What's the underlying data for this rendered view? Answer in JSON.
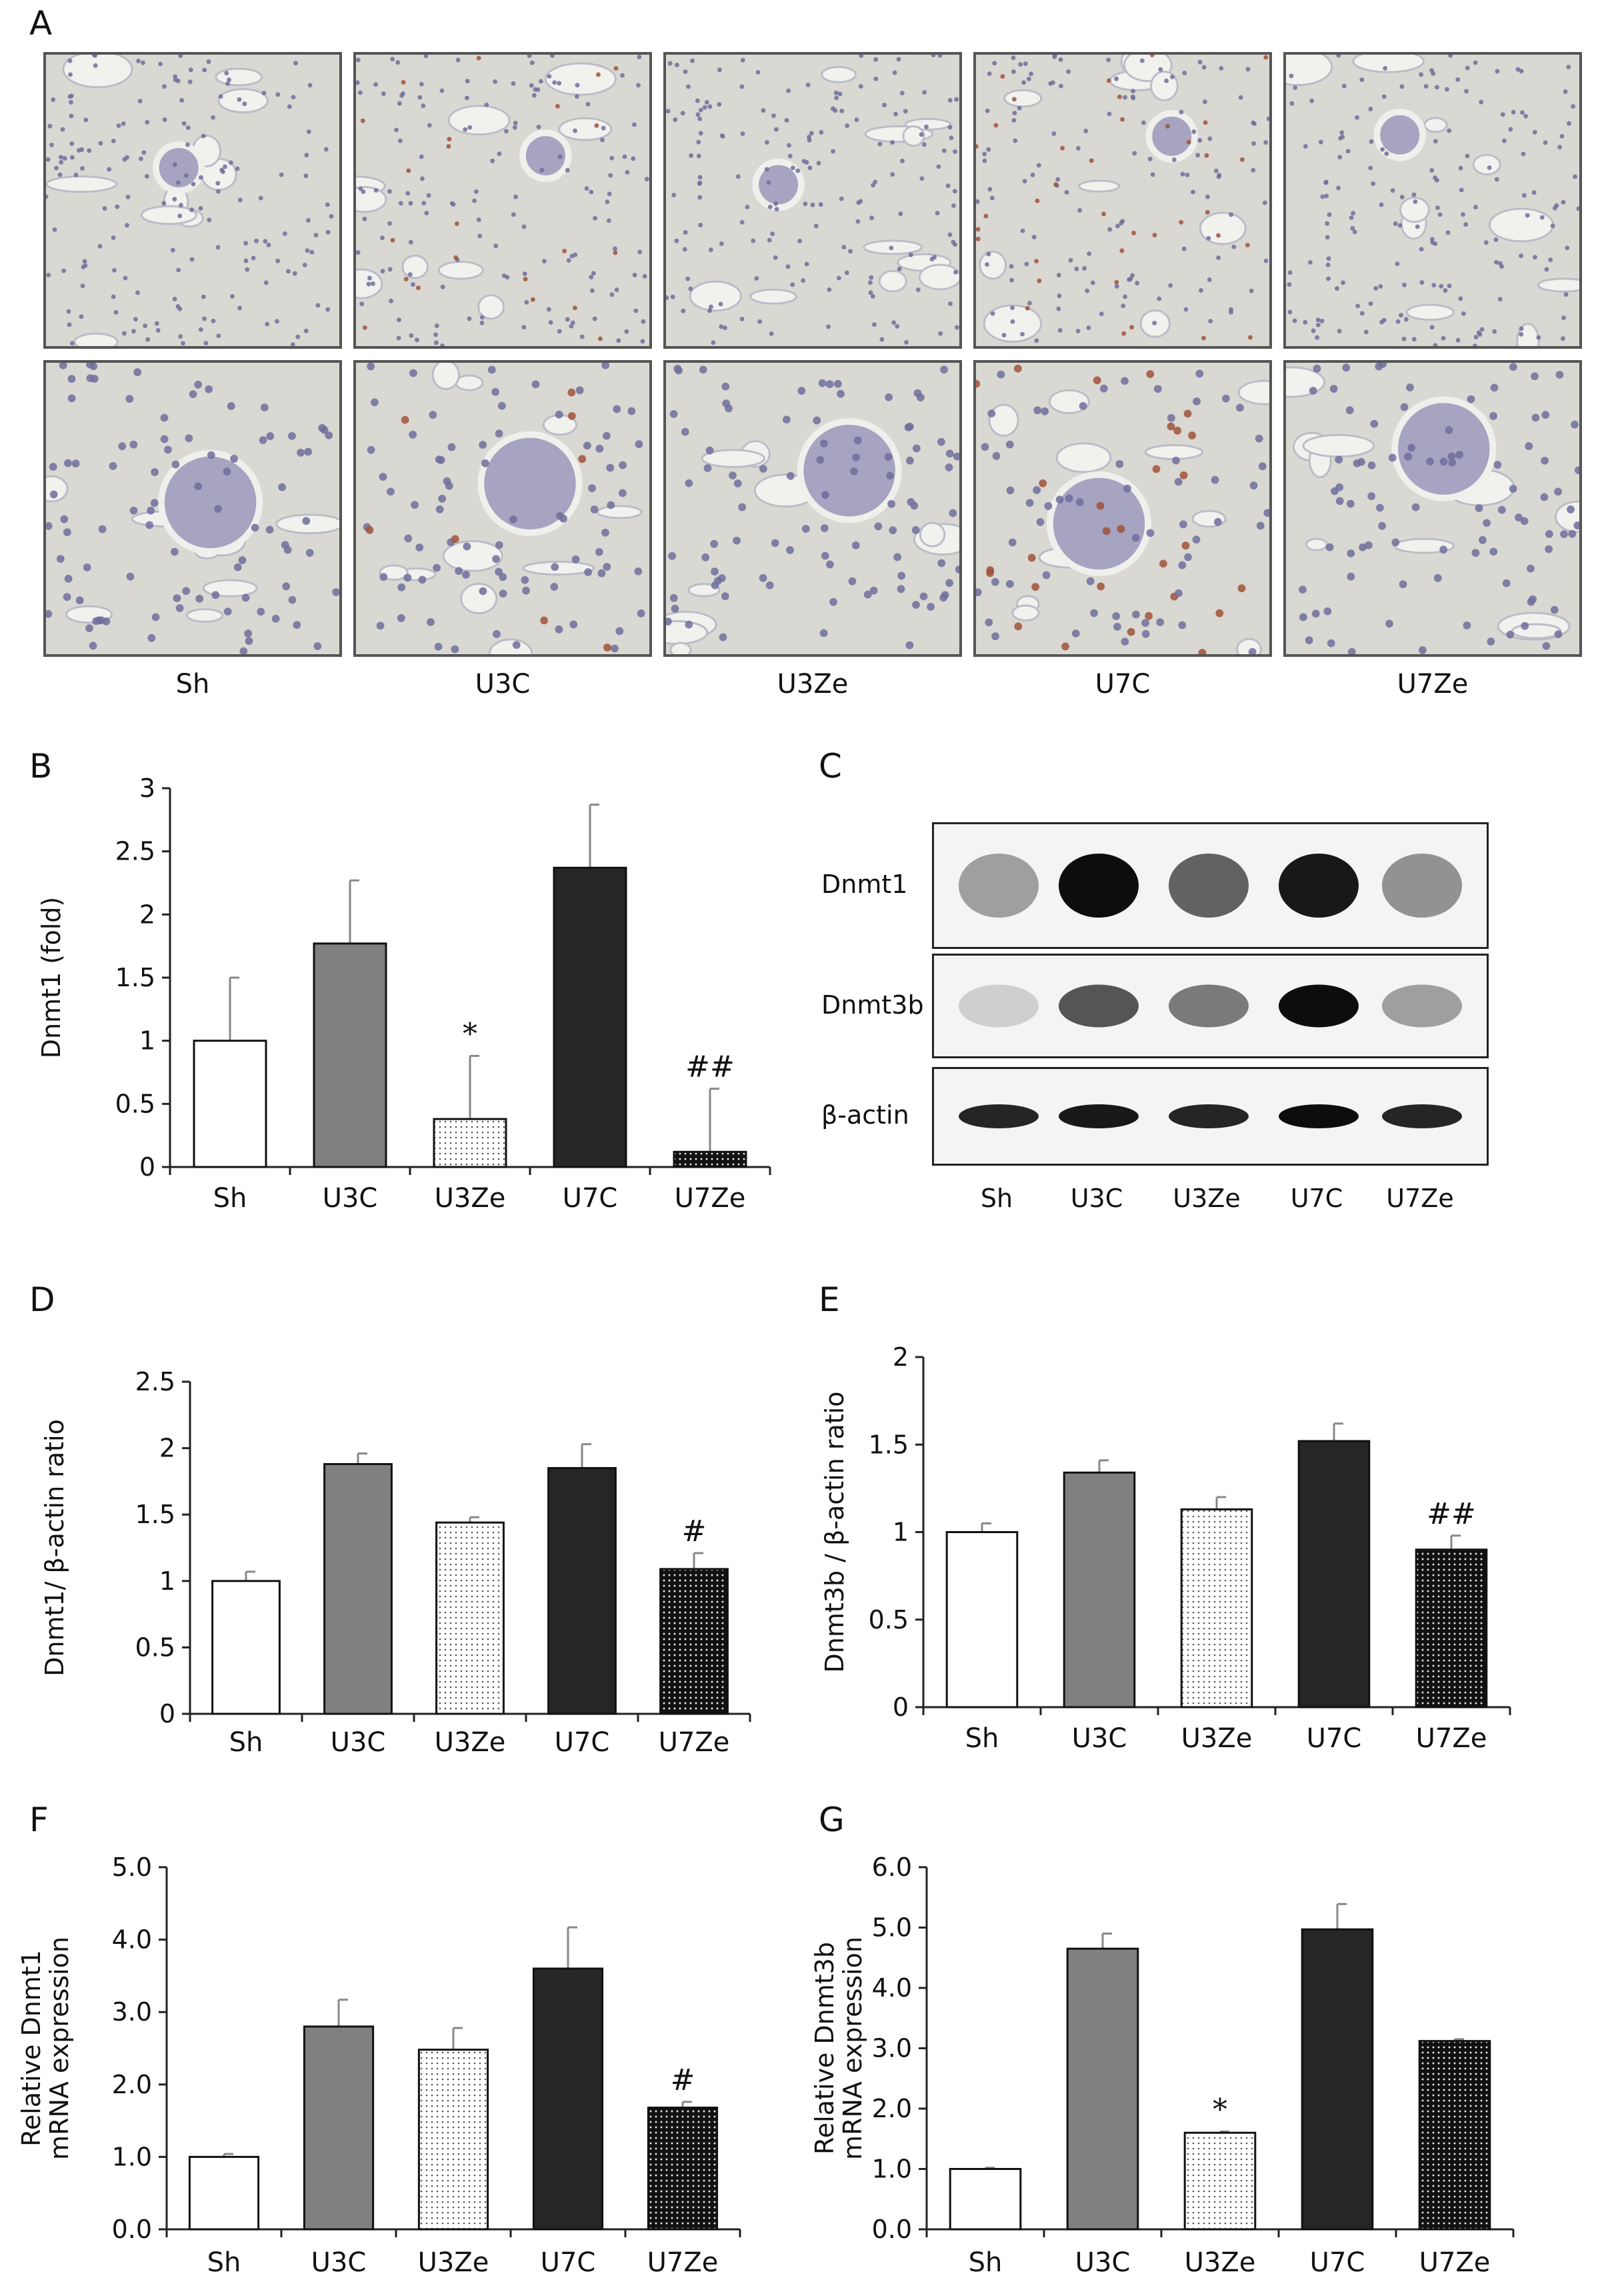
{
  "panel_letters": {
    "A": "A",
    "B": "B",
    "C": "C",
    "D": "D",
    "E": "E",
    "F": "F",
    "G": "G"
  },
  "micrograph_groups": [
    "Sh",
    "U3C",
    "U3Ze",
    "U7C",
    "U7Ze"
  ],
  "blot": {
    "rows": [
      "Dnmt1",
      "Dnmt3b",
      "β-actin"
    ],
    "lanes": [
      "Sh",
      "U3C",
      "U3Ze",
      "U7C",
      "U7Ze"
    ],
    "intensities": {
      "Dnmt1": [
        0.35,
        0.95,
        0.6,
        0.9,
        0.4
      ],
      "Dnmt3b": [
        0.15,
        0.65,
        0.5,
        0.95,
        0.35
      ],
      "β-actin": [
        0.85,
        0.9,
        0.85,
        0.95,
        0.85
      ]
    }
  },
  "chart_data": [
    {
      "id": "B",
      "type": "bar",
      "categories": [
        "Sh",
        "U3C",
        "U3Ze",
        "U7C",
        "U7Ze"
      ],
      "values": [
        1.0,
        1.77,
        0.38,
        2.37,
        0.12
      ],
      "errors": [
        0.5,
        0.5,
        0.5,
        0.5,
        0.5
      ],
      "ylabel": "Dnmt1 (fold)",
      "ylim": [
        0,
        3
      ],
      "yticks": [
        "0",
        "0.5",
        "1",
        "1.5",
        "2",
        "2.5",
        "3"
      ],
      "annotations": [
        "",
        "",
        "*",
        "",
        "##"
      ]
    },
    {
      "id": "D",
      "type": "bar",
      "categories": [
        "Sh",
        "U3C",
        "U3Ze",
        "U7C",
        "U7Ze"
      ],
      "values": [
        1.0,
        1.88,
        1.44,
        1.85,
        1.09
      ],
      "errors": [
        0.07,
        0.08,
        0.04,
        0.18,
        0.12
      ],
      "ylabel": "Dnmt1/ β-actin ratio",
      "ylim": [
        0,
        2.5
      ],
      "yticks": [
        "0",
        "0.5",
        "1",
        "1.5",
        "2",
        "2.5"
      ],
      "annotations": [
        "",
        "",
        "",
        "",
        "#"
      ]
    },
    {
      "id": "E",
      "type": "bar",
      "categories": [
        "Sh",
        "U3C",
        "U3Ze",
        "U7C",
        "U7Ze"
      ],
      "values": [
        1.0,
        1.34,
        1.13,
        1.52,
        0.9
      ],
      "errors": [
        0.05,
        0.07,
        0.07,
        0.1,
        0.08
      ],
      "ylabel": "Dnmt3b / β-actin ratio",
      "ylim": [
        0,
        2
      ],
      "yticks": [
        "0",
        "0.5",
        "1",
        "1.5",
        "2"
      ],
      "annotations": [
        "",
        "",
        "",
        "",
        "##"
      ]
    },
    {
      "id": "F",
      "type": "bar",
      "categories": [
        "Sh",
        "U3C",
        "U3Ze",
        "U7C",
        "U7Ze"
      ],
      "values": [
        1.0,
        2.8,
        2.48,
        3.6,
        1.68
      ],
      "errors": [
        0.04,
        0.37,
        0.3,
        0.57,
        0.08
      ],
      "ylabel": "Relative  Dnmt1 mRNA expression",
      "ylim": [
        0,
        5
      ],
      "yticks": [
        "0.0",
        "1.0",
        "2.0",
        "3.0",
        "4.0",
        "5.0"
      ],
      "annotations": [
        "",
        "",
        "",
        "",
        "#"
      ]
    },
    {
      "id": "G",
      "type": "bar",
      "categories": [
        "Sh",
        "U3C",
        "U3Ze",
        "U7C",
        "U7Ze"
      ],
      "values": [
        1.0,
        4.65,
        1.6,
        4.97,
        3.12
      ],
      "errors": [
        0.02,
        0.25,
        0.02,
        0.42,
        0.03
      ],
      "ylabel": "Relative  Dnmt3b mRNA expression",
      "ylim": [
        0,
        6
      ],
      "yticks": [
        "0.0",
        "1.0",
        "2.0",
        "3.0",
        "4.0",
        "5.0",
        "6.0"
      ],
      "annotations": [
        "",
        "",
        "*",
        "",
        ""
      ]
    }
  ]
}
